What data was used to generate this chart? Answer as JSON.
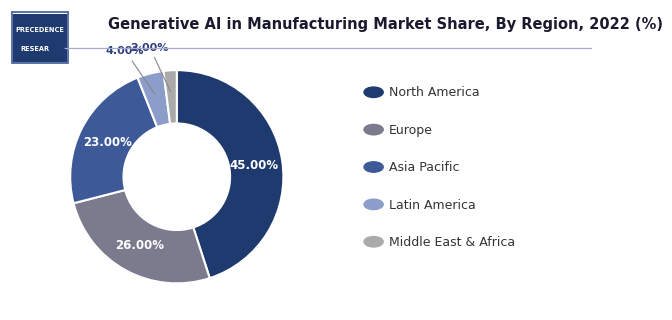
{
  "title": "Generative AI in Manufacturing Market Share, By Region, 2022 (%)",
  "labels": [
    "North America",
    "Europe",
    "Asia Pacific",
    "Latin America",
    "Middle East & Africa"
  ],
  "values": [
    45,
    26,
    23,
    4,
    2
  ],
  "pct_labels": [
    "45.00%",
    "26.00%",
    "23.00%",
    "4.00%",
    "2.00%"
  ],
  "colors": [
    "#1e3a6e",
    "#7b7b8d",
    "#3d5998",
    "#8b9dc8",
    "#aaaaaa"
  ],
  "background_color": "#ffffff",
  "title_fontsize": 10.5,
  "legend_fontsize": 9,
  "pct_fontsize": 8,
  "startangle": 90
}
